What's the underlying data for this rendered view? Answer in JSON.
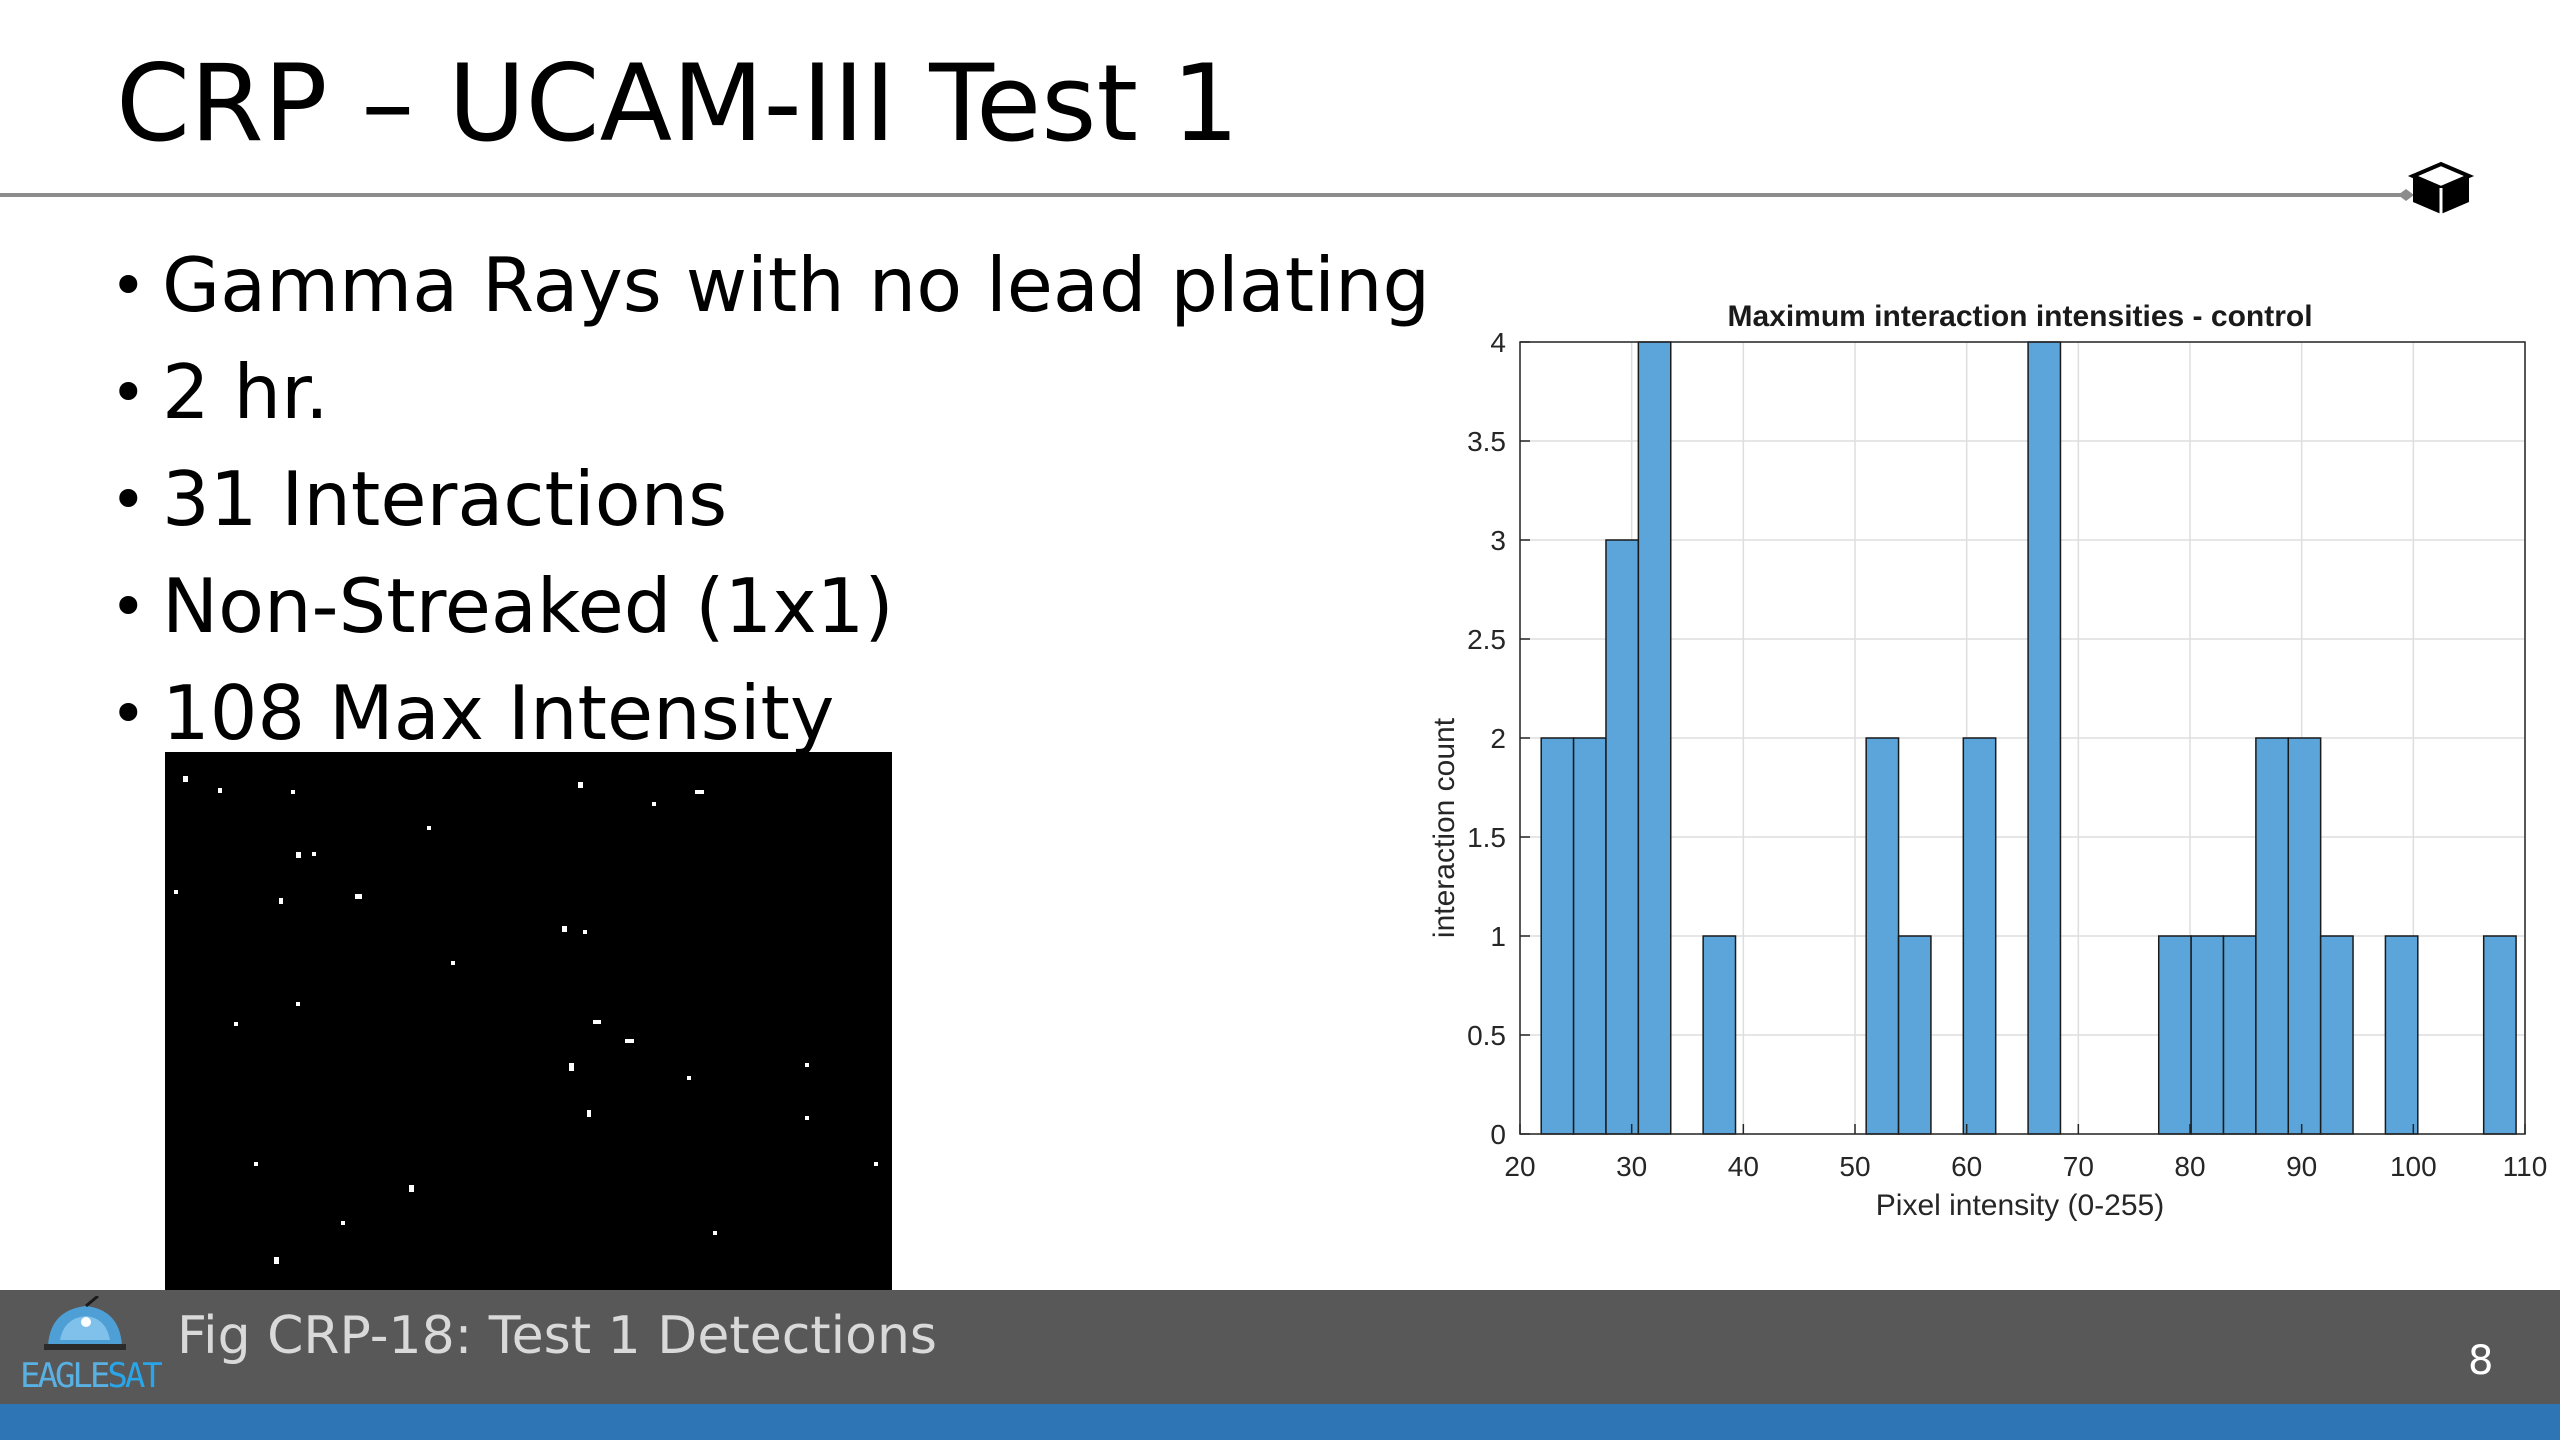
{
  "slide": {
    "title": "CRP – UCAM-III Test 1",
    "bullets": [
      "Gamma Rays with no lead plating",
      "2 hr.",
      "31 Interactions",
      "Non-Streaked (1x1)",
      "108 Max Intensity"
    ],
    "figure_caption": "Fig CRP-18: Test 1 Detections",
    "page_number": "8",
    "logo": {
      "text_part1": "EAGLE",
      "text_part2": "SAT",
      "icon": "eaglesat-dome-icon"
    },
    "corner_icon": "cube-icon"
  },
  "colors": {
    "footer": "#585858",
    "stripe": "#2e75b6",
    "bar_fill": "#5ba5da",
    "bar_edge": "#1a1a1a",
    "rule": "#8c8c8c"
  },
  "chart_data": {
    "type": "bar",
    "title": "Maximum interaction intensities - control",
    "xlabel": "Pixel intensity (0-255)",
    "ylabel": "interaction count",
    "xlim": [
      20,
      110
    ],
    "ylim": [
      0,
      4
    ],
    "xticks": [
      "20",
      "30",
      "40",
      "50",
      "60",
      "70",
      "80",
      "90",
      "100",
      "110"
    ],
    "yticks": [
      "0",
      "0.5",
      "1",
      "1.5",
      "2",
      "2.5",
      "3",
      "3.5",
      "4"
    ],
    "grid": true,
    "bin_width": 2.9,
    "bins": [
      {
        "start": 21.9,
        "count": 2
      },
      {
        "start": 24.8,
        "count": 2
      },
      {
        "start": 27.7,
        "count": 3
      },
      {
        "start": 30.6,
        "count": 4
      },
      {
        "start": 36.4,
        "count": 1
      },
      {
        "start": 51.0,
        "count": 2
      },
      {
        "start": 53.9,
        "count": 1
      },
      {
        "start": 59.7,
        "count": 2
      },
      {
        "start": 65.5,
        "count": 4
      },
      {
        "start": 77.2,
        "count": 1
      },
      {
        "start": 80.1,
        "count": 1
      },
      {
        "start": 83.0,
        "count": 1
      },
      {
        "start": 85.9,
        "count": 2
      },
      {
        "start": 88.8,
        "count": 2
      },
      {
        "start": 91.7,
        "count": 1
      },
      {
        "start": 97.5,
        "count": 1
      },
      {
        "start": 106.3,
        "count": 1
      }
    ]
  }
}
